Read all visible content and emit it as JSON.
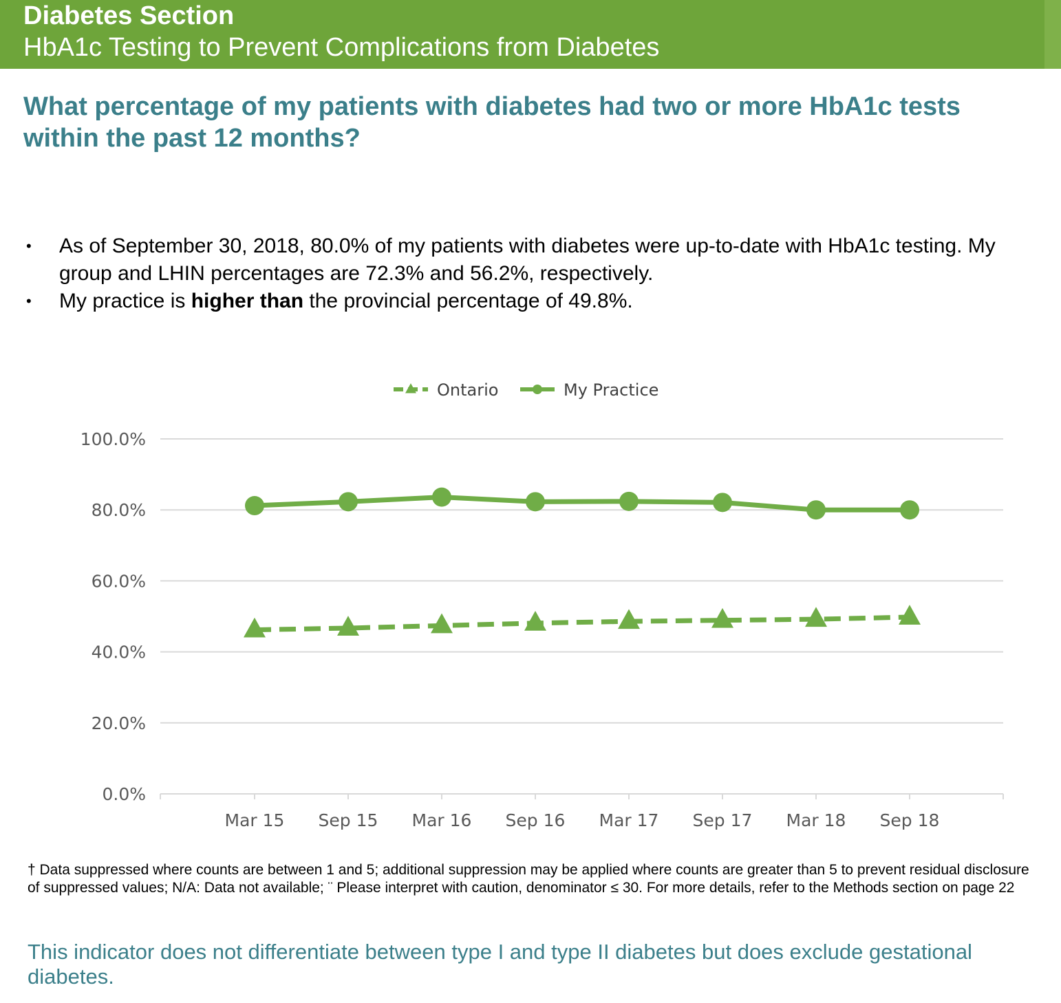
{
  "header": {
    "section_title": "Diabetes Section",
    "section_subtitle": "HbA1c Testing to Prevent Complications from Diabetes"
  },
  "question": "What percentage of my patients with diabetes had two or more HbA1c tests within the past 12 months?",
  "bullets": [
    {
      "marker": "•",
      "text": "As of September 30, 2018, 80.0% of my patients with diabetes were up-to-date with HbA1c testing. My group and LHIN percentages are 72.3% and 56.2%, respectively."
    },
    {
      "marker": "•",
      "prefix": "My practice is",
      "emphasis": "higher than",
      "suffix": "the provincial percentage of 49.8%."
    }
  ],
  "colors": {
    "header_band": "#6ea53a",
    "series_green": "#70ad47",
    "heading_teal": "#3b7f8a",
    "gridline": "#d9d9d9"
  },
  "chart_data": {
    "type": "line",
    "categories": [
      "Mar 15",
      "Sep 15",
      "Mar 16",
      "Sep 16",
      "Mar 17",
      "Sep 17",
      "Mar 18",
      "Sep 18"
    ],
    "series": [
      {
        "name": "Ontario",
        "style": "dashed",
        "marker": "triangle",
        "values": [
          46.2,
          46.7,
          47.4,
          48.1,
          48.6,
          48.9,
          49.2,
          49.8
        ]
      },
      {
        "name": "My Practice",
        "style": "solid",
        "marker": "circle",
        "values": [
          81.2,
          82.3,
          83.6,
          82.3,
          82.4,
          82.1,
          80.0,
          80.0
        ]
      }
    ],
    "ylim": [
      0,
      100
    ],
    "yticks": [
      "0.0%",
      "20.0%",
      "40.0%",
      "60.0%",
      "80.0%",
      "100.0%"
    ],
    "grid": true,
    "legend_position": "top-center"
  },
  "footnote": "† Data suppressed where counts are between 1 and 5; additional suppression may be applied where counts are greater than 5 to prevent residual disclosure of suppressed values; N/A: Data not available; ¨ Please interpret with caution, denominator ≤ 30. For more details, refer to the Methods section on page 22",
  "indicator_note": "This indicator does not differentiate between type I and type II diabetes but does exclude gestational diabetes."
}
